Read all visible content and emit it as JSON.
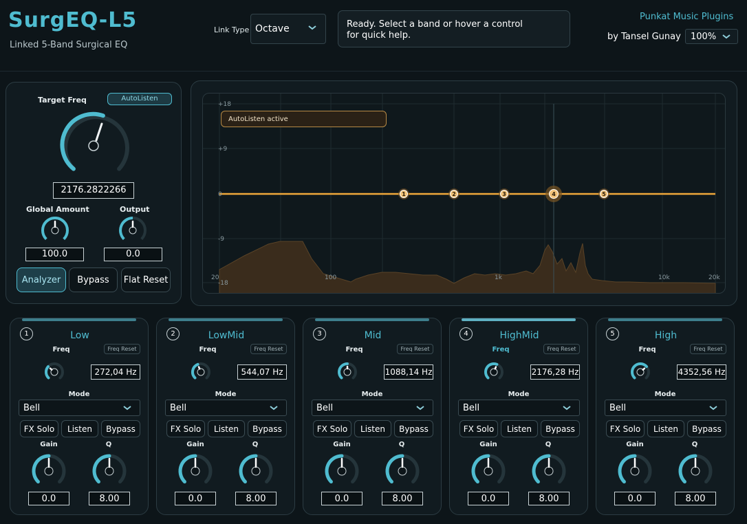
{
  "header": {
    "title": "SurgEQ-L5",
    "subtitle": "Linked 5-Band Surgical EQ",
    "link_type_label": "Link Type",
    "link_type_value": "Octave",
    "help_line1": "Ready. Select a band or hover a control",
    "help_line2": "for quick help.",
    "brand": "Punkat Music Plugins",
    "author": "by Tansel Gunay",
    "zoom": "100%"
  },
  "left_panel": {
    "target_freq_label": "Target Freq",
    "autolisten_label": "AutoListen",
    "target_freq_value": "2176.2822266",
    "global_amount_label": "Global Amount",
    "global_amount_value": "100.0",
    "output_label": "Output",
    "output_value": "0.0",
    "analyzer_label": "Analyzer",
    "bypass_label": "Bypass",
    "flat_reset_label": "Flat Reset"
  },
  "graph": {
    "autolisten_badge": "AutoListen active",
    "y_ticks": [
      "+18",
      "+9",
      "0",
      "-9",
      "-18"
    ],
    "x_ticks": [
      "20",
      "100",
      "1k",
      "10k",
      "20k"
    ],
    "nodes": [
      "1",
      "2",
      "3",
      "4",
      "5"
    ]
  },
  "bands": [
    {
      "num": "1",
      "name": "Low",
      "freq_label": "Freq",
      "freq_reset": "Freq Reset",
      "freq_value": "272,04 Hz",
      "mode_label": "Mode",
      "mode": "Bell",
      "fx_solo": "FX Solo",
      "listen": "Listen",
      "bypass": "Bypass",
      "gain_label": "Gain",
      "q_label": "Q",
      "gain_value": "0.0",
      "q_value": "8.00"
    },
    {
      "num": "2",
      "name": "LowMid",
      "freq_label": "Freq",
      "freq_reset": "Freq Reset",
      "freq_value": "544,07 Hz",
      "mode_label": "Mode",
      "mode": "Bell",
      "fx_solo": "FX Solo",
      "listen": "Listen",
      "bypass": "Bypass",
      "gain_label": "Gain",
      "q_label": "Q",
      "gain_value": "0.0",
      "q_value": "8.00"
    },
    {
      "num": "3",
      "name": "Mid",
      "freq_label": "Freq",
      "freq_reset": "Freq Reset",
      "freq_value": "1088,14 Hz",
      "mode_label": "Mode",
      "mode": "Bell",
      "fx_solo": "FX Solo",
      "listen": "Listen",
      "bypass": "Bypass",
      "gain_label": "Gain",
      "q_label": "Q",
      "gain_value": "0.0",
      "q_value": "8.00"
    },
    {
      "num": "4",
      "name": "HighMid",
      "freq_label": "Freq",
      "freq_reset": "Freq Reset",
      "freq_value": "2176,28 Hz",
      "mode_label": "Mode",
      "mode": "Bell",
      "fx_solo": "FX Solo",
      "listen": "Listen",
      "bypass": "Bypass",
      "gain_label": "Gain",
      "q_label": "Q",
      "gain_value": "0.0",
      "q_value": "8.00"
    },
    {
      "num": "5",
      "name": "High",
      "freq_label": "Freq",
      "freq_reset": "Freq Reset",
      "freq_value": "4352,56 Hz",
      "mode_label": "Mode",
      "mode": "Bell",
      "fx_solo": "FX Solo",
      "listen": "Listen",
      "bypass": "Bypass",
      "gain_label": "Gain",
      "q_label": "Q",
      "gain_value": "0.0",
      "q_value": "8.00"
    }
  ],
  "colors": {
    "accent": "#4fbcd0",
    "curve": "#f0a83a",
    "background": "#0d1519"
  }
}
